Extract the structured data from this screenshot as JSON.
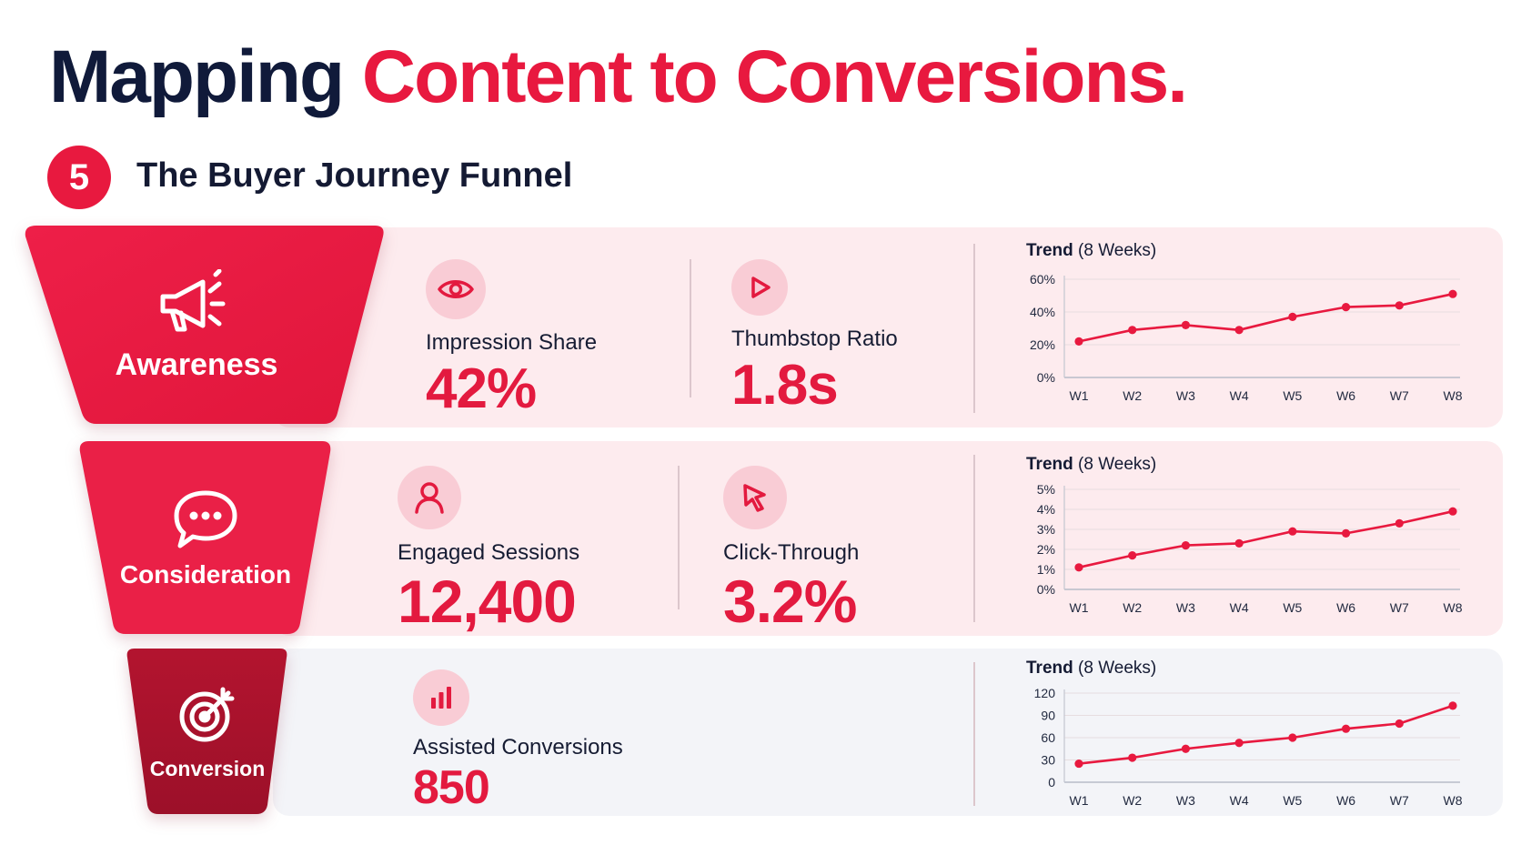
{
  "header": {
    "title_part1": "Mapping",
    "title_part2": "Content to Conversions.",
    "step_number": "5",
    "subtitle": "The Buyer Journey Funnel"
  },
  "colors": {
    "accent": "#e8193f",
    "dark_text": "#101a3a",
    "conversion_stage": "#a6122e"
  },
  "stages": [
    {
      "name": "Awareness",
      "icon": "megaphone-icon",
      "metrics": [
        {
          "icon": "eye-icon",
          "label": "Impression Share",
          "value": "42%"
        },
        {
          "icon": "play-icon",
          "label": "Thumbstop Ratio",
          "value": "1.8s"
        }
      ],
      "trend_title_bold": "Trend",
      "trend_title_rest": "(8 Weeks)"
    },
    {
      "name": "Consideration",
      "icon": "chat-bubble-icon",
      "metrics": [
        {
          "icon": "user-icon",
          "label": "Engaged Sessions",
          "value": "12,400"
        },
        {
          "icon": "cursor-icon",
          "label": "Click-Through",
          "value": "3.2%"
        }
      ],
      "trend_title_bold": "Trend",
      "trend_title_rest": "(8 Weeks)"
    },
    {
      "name": "Conversion",
      "icon": "target-icon",
      "metrics": [
        {
          "icon": "bar-chart-icon",
          "label": "Assisted Conversions",
          "value": "850"
        }
      ],
      "trend_title_bold": "Trend",
      "trend_title_rest": "(8 Weeks)"
    }
  ],
  "chart_data": [
    {
      "type": "line",
      "title": "Trend (8 Weeks)",
      "x": [
        "W1",
        "W2",
        "W3",
        "W4",
        "W5",
        "W6",
        "W7",
        "W8"
      ],
      "series": [
        {
          "values": [
            22,
            29,
            32,
            29,
            37,
            43,
            44,
            51
          ]
        }
      ],
      "ylim": [
        0,
        60
      ],
      "yticks": [
        0,
        20,
        40,
        60
      ],
      "ytick_labels": [
        "0%",
        "20%",
        "40%",
        "60%"
      ],
      "grid": "horizontal"
    },
    {
      "type": "line",
      "title": "Trend (8 Weeks)",
      "x": [
        "W1",
        "W2",
        "W3",
        "W4",
        "W5",
        "W6",
        "W7",
        "W8"
      ],
      "series": [
        {
          "values": [
            1.1,
            1.7,
            2.2,
            2.3,
            2.9,
            2.8,
            3.3,
            3.9
          ]
        }
      ],
      "ylim": [
        0,
        5
      ],
      "yticks": [
        0,
        1,
        2,
        3,
        4,
        5
      ],
      "ytick_labels": [
        "0%",
        "1%",
        "2%",
        "3%",
        "4%",
        "5%"
      ],
      "grid": "horizontal"
    },
    {
      "type": "line",
      "title": "Trend (8 Weeks)",
      "x": [
        "W1",
        "W2",
        "W3",
        "W4",
        "W5",
        "W6",
        "W7",
        "W8"
      ],
      "series": [
        {
          "values": [
            25,
            33,
            45,
            53,
            60,
            72,
            79,
            103
          ]
        }
      ],
      "ylim": [
        0,
        120
      ],
      "yticks": [
        0,
        30,
        60,
        90,
        120
      ],
      "ytick_labels": [
        "0",
        "30",
        "60",
        "90",
        "120"
      ],
      "grid": "horizontal"
    }
  ]
}
